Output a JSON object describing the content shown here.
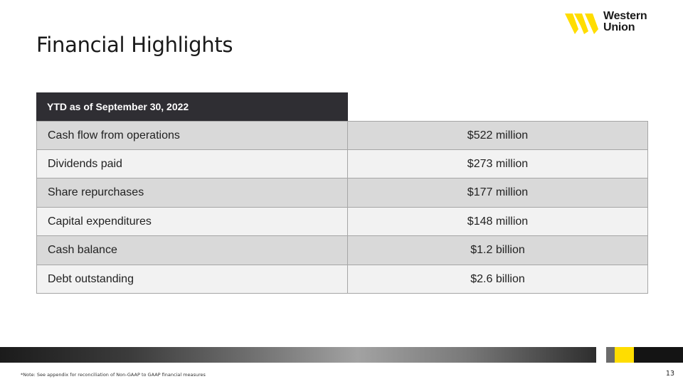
{
  "slide": {
    "title": "Financial Highlights",
    "page_number": "13",
    "footnote": "*Note: See appendix for reconciliation of Non-GAAP to GAAP financial measures"
  },
  "logo": {
    "line1": "Western",
    "line2": "Union",
    "icon": "western-union-w-icon",
    "color": "#ffdd00"
  },
  "table": {
    "header": "YTD as of September 30, 2022",
    "rows": [
      {
        "label": "Cash flow from operations",
        "value": "$522 million"
      },
      {
        "label": "Dividends paid",
        "value": "$273 million"
      },
      {
        "label": "Share repurchases",
        "value": "$177 million"
      },
      {
        "label": "Capital expenditures",
        "value": "$148 million"
      },
      {
        "label": "Cash balance",
        "value": "$1.2 billion"
      },
      {
        "label": "Debt outstanding",
        "value": "$2.6 billion"
      }
    ]
  },
  "colors": {
    "header_bg": "#2f2e33",
    "row_odd": "#d9d9d9",
    "row_even": "#f2f2f2",
    "accent_yellow": "#ffdd00"
  }
}
